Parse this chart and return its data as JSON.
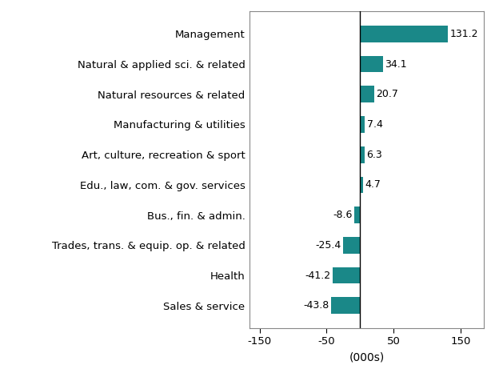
{
  "categories": [
    "Sales & service",
    "Health",
    "Trades, trans. & equip. op. & related",
    "Bus., fin. & admin.",
    "Edu., law, com. & gov. services",
    "Art, culture, recreation & sport",
    "Manufacturing & utilities",
    "Natural resources & related",
    "Natural & applied sci. & related",
    "Management"
  ],
  "values": [
    -43.8,
    -41.2,
    -25.4,
    -8.6,
    4.7,
    6.3,
    7.4,
    20.7,
    34.1,
    131.2
  ],
  "bar_color": "#1a8888",
  "xlabel": "(000s)",
  "xlim": [
    -165,
    185
  ],
  "xticks": [
    -150,
    -50,
    50,
    150
  ],
  "xticklabels": [
    "-150",
    "-50",
    "50",
    "150"
  ],
  "background_color": "#ffffff",
  "label_fontsize": 9.5,
  "xlabel_fontsize": 10,
  "value_label_fontsize": 9,
  "bar_height": 0.55
}
